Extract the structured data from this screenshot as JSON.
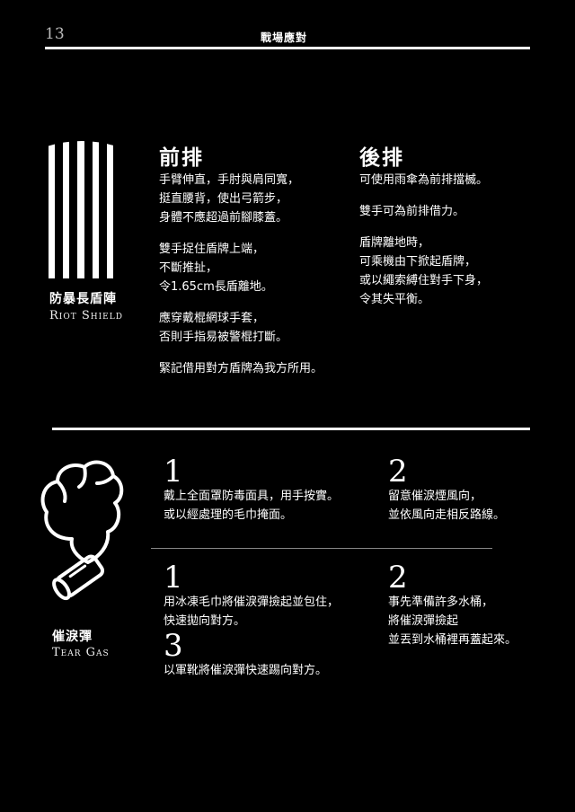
{
  "header": {
    "page_number": "13",
    "title": "戰場應對"
  },
  "riot_shield": {
    "name_zh": "防暴長盾陣",
    "name_en": "Riot Shield",
    "icon": "riot-shield-stripes-icon",
    "front": {
      "title": "前排",
      "paragraphs": [
        [
          "手臂伸直，手肘與肩同寬，",
          "挺直腰背，使出弓箭步，",
          "身體不應超過前腳膝蓋。"
        ],
        [
          "雙手捉住盾牌上端，",
          "不斷推扯，",
          "令1.65cm長盾離地。"
        ],
        [
          "應穿戴棍網球手套，",
          "否則手指易被警棍打斷。"
        ],
        [
          "緊記借用對方盾牌為我方所用。"
        ]
      ]
    },
    "back": {
      "title": "後排",
      "paragraphs": [
        [
          "可使用雨傘為前排擋楲。"
        ],
        [
          "雙手可為前排借力。"
        ],
        [
          "盾牌離地時，",
          "可乘機由下掀起盾牌，",
          "或以繩索縛住對手下身，",
          "令其失平衡。"
        ]
      ]
    }
  },
  "tear_gas": {
    "name_zh": "催淚彈",
    "name_en": "Tear Gas",
    "icon": "tear-gas-canister-icon",
    "top": [
      {
        "num": "1",
        "lines": [
          "戴上全面罩防毒面具，用手按實。",
          "或以經處理的毛巾掩面。"
        ]
      },
      {
        "num": "2",
        "lines": [
          "留意催淚煙風向，",
          "並依風向走相反路線。"
        ]
      }
    ],
    "bottom": [
      {
        "num": "1",
        "lines": [
          "用冰凍毛巾將催淚彈撿起並包住，",
          "快速拋向對方。"
        ]
      },
      {
        "num": "2",
        "lines": [
          "事先準備許多水桶，",
          "將催淚彈撿起",
          "並丟到水桶裡再蓋起來。"
        ]
      },
      {
        "num": "3",
        "lines": [
          "以軍靴將催淚彈快速踢向對方。"
        ]
      }
    ]
  }
}
